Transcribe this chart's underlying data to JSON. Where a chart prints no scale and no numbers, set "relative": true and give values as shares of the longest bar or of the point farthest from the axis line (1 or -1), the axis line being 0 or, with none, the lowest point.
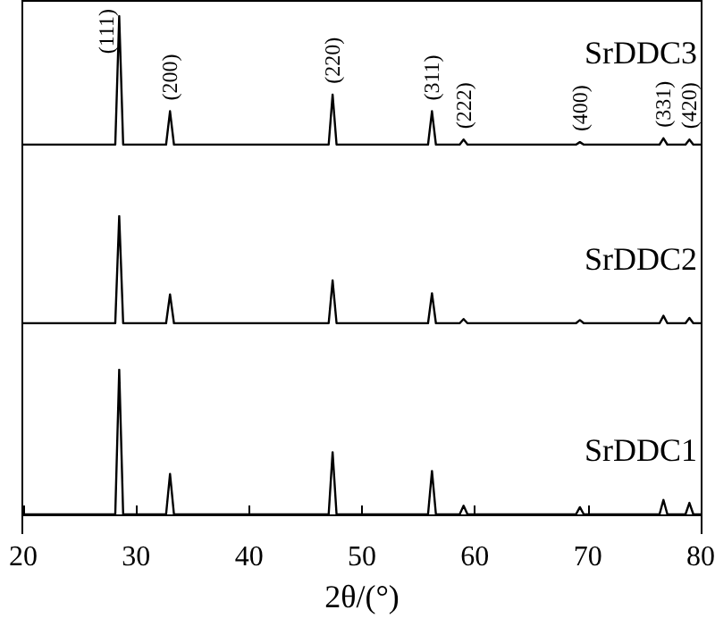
{
  "chart_data": [
    {
      "type": "line",
      "relative": true,
      "xlim": [
        20,
        80
      ],
      "xticks": [
        20,
        30,
        40,
        50,
        60,
        70,
        80
      ],
      "tick_labels": false,
      "x": [
        20,
        28.15,
        28.5,
        28.85,
        32.65,
        33.0,
        33.35,
        47.05,
        47.4,
        47.75,
        55.85,
        56.2,
        56.55,
        58.65,
        59.0,
        59.35,
        68.95,
        69.3,
        69.65,
        76.35,
        76.7,
        77.05,
        78.65,
        79.0,
        79.35,
        80
      ],
      "series": [
        {
          "name": "SrDDC3",
          "color": "#000000",
          "values": [
            0,
            0,
            1,
            0,
            0,
            0.26,
            0,
            0,
            0.39,
            0,
            0,
            0.26,
            0,
            0,
            0.04,
            0,
            0,
            0.02,
            0,
            0,
            0.05,
            0,
            0,
            0.04,
            0,
            0
          ]
        }
      ],
      "annotations": [
        {
          "text": "(111)",
          "x": 28.5,
          "y": 1
        },
        {
          "text": "(200)",
          "x": 33.0,
          "y": 0.26
        },
        {
          "text": "(220)",
          "x": 47.4,
          "y": 0.39
        },
        {
          "text": "(311)",
          "x": 56.2,
          "y": 0.26
        },
        {
          "text": "(222)",
          "x": 59.0,
          "y": 0.04
        },
        {
          "text": "(400)",
          "x": 69.3,
          "y": 0.02
        },
        {
          "text": "(331)",
          "x": 76.7,
          "y": 0.05
        },
        {
          "text": "(420)",
          "x": 79.0,
          "y": 0.04
        }
      ]
    },
    {
      "type": "line",
      "relative": true,
      "xlim": [
        20,
        80
      ],
      "xticks": [
        20,
        30,
        40,
        50,
        60,
        70,
        80
      ],
      "tick_labels": false,
      "x": [
        20,
        28.15,
        28.5,
        28.85,
        32.65,
        33.0,
        33.35,
        47.05,
        47.4,
        47.75,
        55.85,
        56.2,
        56.55,
        58.65,
        59.0,
        59.35,
        68.95,
        69.3,
        69.65,
        76.35,
        76.7,
        77.05,
        78.65,
        79.0,
        79.35,
        80
      ],
      "series": [
        {
          "name": "SrDDC2",
          "color": "#000000",
          "values": [
            0,
            0,
            1,
            0,
            0,
            0.27,
            0,
            0,
            0.4,
            0,
            0,
            0.28,
            0,
            0,
            0.04,
            0,
            0,
            0.03,
            0,
            0,
            0.07,
            0,
            0,
            0.05,
            0,
            0
          ]
        }
      ]
    },
    {
      "type": "line",
      "relative": true,
      "xlim": [
        20,
        80
      ],
      "xticks": [
        20,
        30,
        40,
        50,
        60,
        70,
        80
      ],
      "tick_labels": "x",
      "xlabel": "2θ/(°)",
      "x": [
        20,
        28.15,
        28.5,
        28.85,
        32.65,
        33.0,
        33.35,
        47.05,
        47.4,
        47.75,
        55.85,
        56.2,
        56.55,
        58.65,
        59.0,
        59.35,
        68.95,
        69.3,
        69.65,
        76.35,
        76.7,
        77.05,
        78.65,
        79.0,
        79.35,
        80
      ],
      "series": [
        {
          "name": "SrDDC1",
          "color": "#000000",
          "values": [
            0,
            0,
            1,
            0,
            0,
            0.28,
            0,
            0,
            0.43,
            0,
            0,
            0.3,
            0,
            0,
            0.06,
            0,
            0,
            0.05,
            0,
            0,
            0.1,
            0,
            0,
            0.08,
            0,
            0
          ]
        }
      ]
    }
  ]
}
